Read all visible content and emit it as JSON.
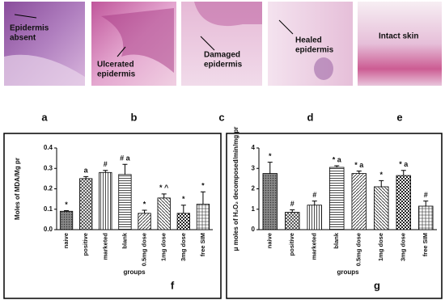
{
  "panels": [
    {
      "label": "a",
      "annotation": [
        "Epidermis",
        "absent"
      ]
    },
    {
      "label": "b",
      "annotation": [
        "Ulcerated",
        "epidermis"
      ]
    },
    {
      "label": "c",
      "annotation": [
        "Damaged",
        "epidermis"
      ]
    },
    {
      "label": "d",
      "annotation": [
        "Healed",
        "epidermis"
      ]
    },
    {
      "label": "e",
      "annotation": [
        "Intact skin"
      ]
    }
  ],
  "chart_data": [
    {
      "type": "bar",
      "panel_label": "f",
      "y_label": "Moles of MDA/Mg pr",
      "x_label": "groups",
      "categories": [
        "naive",
        "positive",
        "marketed",
        "blank",
        "0.5mg dose",
        "1mg dose",
        "3mg dose",
        "free SIM"
      ],
      "values": [
        0.09,
        0.25,
        0.28,
        0.27,
        0.08,
        0.155,
        0.08,
        0.125
      ],
      "errors": [
        0.003,
        0.01,
        0.01,
        0.05,
        0.015,
        0.02,
        0.04,
        0.06
      ],
      "annotations": [
        "*",
        "a",
        "#",
        "# a",
        "*",
        "* ^",
        "*",
        "*"
      ],
      "ylim": [
        0,
        0.4
      ],
      "yticks": [
        {
          "value": 0,
          "label": "0.0"
        },
        {
          "value": 0.1,
          "label": "0.1"
        },
        {
          "value": 0.2,
          "label": "0.2"
        },
        {
          "value": 0.3,
          "label": "0.3"
        },
        {
          "value": 0.4,
          "label": "0.4"
        }
      ]
    },
    {
      "type": "bar",
      "panel_label": "g",
      "y_label": "μ moles of H₂O₂ decomposed/min/mg pr",
      "x_label": "groups",
      "categories": [
        "naive",
        "positive",
        "marketed",
        "blank",
        "0.5mg dose",
        "1mg dose",
        "3mg dose",
        "free SIM"
      ],
      "values": [
        2.75,
        0.85,
        1.2,
        3.05,
        2.75,
        2.1,
        2.65,
        1.15
      ],
      "errors": [
        0.55,
        0.12,
        0.2,
        0.08,
        0.12,
        0.3,
        0.25,
        0.25
      ],
      "annotations": [
        "*",
        "#",
        "#",
        "* a",
        "* a",
        "*",
        "* a",
        "#"
      ],
      "ylim": [
        0,
        4
      ],
      "yticks": [
        0,
        1,
        2,
        3,
        4
      ]
    }
  ]
}
